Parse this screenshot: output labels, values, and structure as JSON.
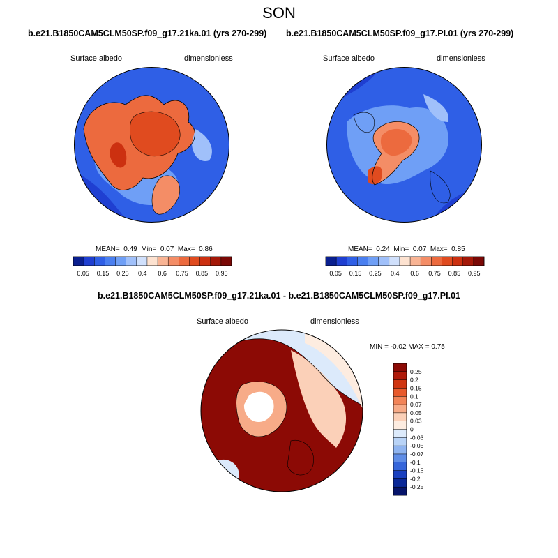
{
  "season": "SON",
  "units": "dimensionless",
  "panels": {
    "left": {
      "case_title": "b.e21.B1850CAM5CLM50SP.f09_g17.21ka.01 (yrs 270-299)",
      "variable": "Surface albedo",
      "units": "dimensionless",
      "mean_label": "MEAN=",
      "mean_value": "0.49",
      "min_label": "Min=",
      "min_value": "0.07",
      "max_label": "Max=",
      "max_value": "0.86"
    },
    "right": {
      "case_title": "b.e21.B1850CAM5CLM50SP.f09_g17.PI.01 (yrs 270-299)",
      "variable": "Surface albedo",
      "units": "dimensionless",
      "mean_label": "MEAN=",
      "mean_value": "0.24",
      "min_label": "Min=",
      "min_value": "0.07",
      "max_label": "Max=",
      "max_value": "0.85"
    },
    "diff": {
      "case_title": "b.e21.B1850CAM5CLM50SP.f09_g17.21ka.01 - b.e21.B1850CAM5CLM50SP.f09_g17.PI.01",
      "variable": "Surface albedo",
      "units": "dimensionless",
      "stats_text": "MIN =  -0.02 MAX =   0.75"
    }
  },
  "colorbar_abs": {
    "labels": [
      "0.05",
      "0.15",
      "0.25",
      "0.4",
      "0.6",
      "0.75",
      "0.85",
      "0.95"
    ],
    "colors": [
      "#0a1f8f",
      "#1f3fd1",
      "#2f5fe6",
      "#4a7ff0",
      "#6f9ff6",
      "#a0c0fa",
      "#d0e0fc",
      "#fde2d0",
      "#f9b494",
      "#f48d66",
      "#ec6a3e",
      "#e04b1f",
      "#cc3010",
      "#a41808",
      "#7a0805"
    ]
  },
  "colorbar_diff": {
    "labels": [
      "0.25",
      "0.2",
      "0.15",
      "0.1",
      "0.07",
      "0.05",
      "0.03",
      "0",
      "-0.03",
      "-0.05",
      "-0.07",
      "-0.1",
      "-0.15",
      "-0.2",
      "-0.25"
    ],
    "colors": [
      "#8c0a05",
      "#b01a0a",
      "#d03510",
      "#e85a2c",
      "#f28458",
      "#f7ab88",
      "#fbd0b8",
      "#fdece0",
      "#dceafb",
      "#b8d3f7",
      "#8fb4f0",
      "#5f8de6",
      "#3565da",
      "#1a40c0",
      "#0a2898",
      "#06146a"
    ]
  },
  "chart_data": [
    {
      "type": "heatmap",
      "projection": "north polar stereographic",
      "title": "b.e21.B1850CAM5CLM50SP.f09_g17.21ka.01 (yrs 270-299)",
      "variable": "Surface albedo",
      "units": "dimensionless",
      "mean": 0.49,
      "min": 0.07,
      "max": 0.86,
      "levels": [
        0.05,
        0.1,
        0.15,
        0.2,
        0.25,
        0.3,
        0.4,
        0.5,
        0.6,
        0.7,
        0.75,
        0.8,
        0.85,
        0.9,
        0.95
      ]
    },
    {
      "type": "heatmap",
      "projection": "north polar stereographic",
      "title": "b.e21.B1850CAM5CLM50SP.f09_g17.PI.01 (yrs 270-299)",
      "variable": "Surface albedo",
      "units": "dimensionless",
      "mean": 0.24,
      "min": 0.07,
      "max": 0.85,
      "levels": [
        0.05,
        0.1,
        0.15,
        0.2,
        0.25,
        0.3,
        0.4,
        0.5,
        0.6,
        0.7,
        0.75,
        0.8,
        0.85,
        0.9,
        0.95
      ]
    },
    {
      "type": "heatmap",
      "projection": "north polar stereographic",
      "title": "b.e21.B1850CAM5CLM50SP.f09_g17.21ka.01 - b.e21.B1850CAM5CLM50SP.f09_g17.PI.01",
      "variable": "Surface albedo",
      "units": "dimensionless",
      "min": -0.02,
      "max": 0.75,
      "levels": [
        -0.25,
        -0.2,
        -0.15,
        -0.1,
        -0.07,
        -0.05,
        -0.03,
        0,
        0.03,
        0.05,
        0.07,
        0.1,
        0.15,
        0.2,
        0.25
      ]
    }
  ]
}
